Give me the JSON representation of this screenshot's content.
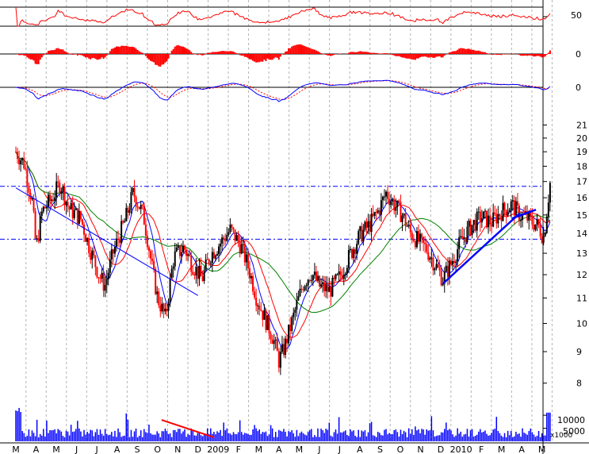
{
  "chart_data": {
    "type": "line",
    "description_panels": [
      "rsi",
      "histogram",
      "oscillator",
      "price-candlestick",
      "volume"
    ],
    "months": [
      "M",
      "A",
      "M",
      "J",
      "J",
      "A",
      "S",
      "O",
      "N",
      "D",
      "2009",
      "F",
      "M",
      "A",
      "M",
      "J",
      "J",
      "A",
      "S",
      "O",
      "N",
      "D",
      "2010",
      "F",
      "M",
      "A",
      "M"
    ],
    "price_axis": {
      "scale": "log",
      "range": [
        7.6,
        21.6
      ],
      "ticks": [
        "8",
        "9",
        "10",
        "11",
        "12",
        "13",
        "14",
        "15",
        "16",
        "17",
        "18",
        "19",
        "20",
        "21"
      ]
    },
    "rsi_axis": {
      "range": [
        25,
        75
      ],
      "ticks": [
        "50"
      ],
      "guides": [
        30,
        70
      ]
    },
    "histogram_axis": {
      "ticks": [
        "0"
      ]
    },
    "oscillator_axis": {
      "ticks": [
        "0"
      ]
    },
    "volume_axis": {
      "ticks": [
        "5000",
        "10000"
      ],
      "unit": "x1000",
      "range": [
        0,
        14000
      ]
    },
    "reference_levels": [
      16.7,
      13.7
    ],
    "trendlines": [
      {
        "color": "#0000ff",
        "points": [
          [
            0,
            16.6
          ],
          [
            9,
            11.1
          ]
        ]
      },
      {
        "color": "#0000ff",
        "points": [
          [
            21.1,
            11.6
          ],
          [
            24.9,
            15.1
          ]
        ]
      },
      {
        "color": "#0000ff",
        "points": [
          [
            24.5,
            14.8
          ],
          [
            25.7,
            15.3
          ]
        ]
      },
      {
        "color": "#ff0000",
        "points": [
          [
            7.2,
            8200
          ],
          [
            9.8,
            1500
          ]
        ],
        "panel": "volume"
      }
    ],
    "price_anchors": [
      [
        0,
        19.0
      ],
      [
        0.4,
        18.2
      ],
      [
        0.8,
        15.8
      ],
      [
        1.0,
        13.2
      ],
      [
        1.3,
        15.2
      ],
      [
        1.8,
        16.0
      ],
      [
        2.2,
        16.9
      ],
      [
        2.6,
        15.4
      ],
      [
        3.2,
        14.8
      ],
      [
        3.6,
        13.4
      ],
      [
        4.1,
        12.0
      ],
      [
        4.4,
        11.5
      ],
      [
        4.8,
        13.0
      ],
      [
        5.4,
        14.7
      ],
      [
        5.8,
        16.3
      ],
      [
        6.3,
        15.0
      ],
      [
        6.7,
        12.5
      ],
      [
        7.0,
        11.0
      ],
      [
        7.4,
        10.2
      ],
      [
        7.8,
        12.8
      ],
      [
        8.3,
        13.3
      ],
      [
        8.7,
        12.5
      ],
      [
        9.2,
        11.8
      ],
      [
        9.6,
        12.9
      ],
      [
        10.1,
        13.5
      ],
      [
        10.6,
        14.2
      ],
      [
        11.1,
        13.4
      ],
      [
        11.5,
        12.3
      ],
      [
        11.9,
        11.0
      ],
      [
        12.3,
        10.2
      ],
      [
        12.7,
        9.5
      ],
      [
        13.0,
        8.7
      ],
      [
        13.3,
        9.2
      ],
      [
        13.7,
        10.2
      ],
      [
        14.2,
        11.6
      ],
      [
        14.6,
        12.1
      ],
      [
        15.0,
        11.5
      ],
      [
        15.5,
        11.3
      ],
      [
        16.0,
        11.9
      ],
      [
        16.5,
        12.9
      ],
      [
        17.0,
        13.9
      ],
      [
        17.5,
        14.5
      ],
      [
        17.9,
        15.2
      ],
      [
        18.3,
        16.3
      ],
      [
        18.7,
        15.6
      ],
      [
        19.1,
        15.0
      ],
      [
        19.5,
        14.0
      ],
      [
        19.9,
        13.6
      ],
      [
        20.3,
        13.2
      ],
      [
        20.7,
        12.5
      ],
      [
        21.1,
        11.8
      ],
      [
        21.5,
        12.5
      ],
      [
        22.0,
        13.6
      ],
      [
        22.5,
        14.4
      ],
      [
        23.0,
        14.9
      ],
      [
        23.5,
        14.6
      ],
      [
        24.0,
        15.2
      ],
      [
        24.5,
        15.6
      ],
      [
        24.9,
        15.0
      ],
      [
        25.3,
        14.8
      ],
      [
        25.8,
        14.4
      ],
      [
        26.1,
        13.8
      ],
      [
        26.4,
        16.9
      ]
    ],
    "moving_averages": [
      {
        "color": "#0000ff",
        "window": 8
      },
      {
        "color": "#ff0000",
        "window": 18
      },
      {
        "color": "#008000",
        "window": 40
      }
    ],
    "colors": {
      "candle": "#000000",
      "rsi": "#ff0000",
      "histogram": "#ff0000",
      "oscillator_main": "#0000ff",
      "oscillator_signal": "#ff0000",
      "volume": "#0000ff",
      "dashed_level": "#0000ff",
      "grid": "#b4b4b4"
    }
  }
}
